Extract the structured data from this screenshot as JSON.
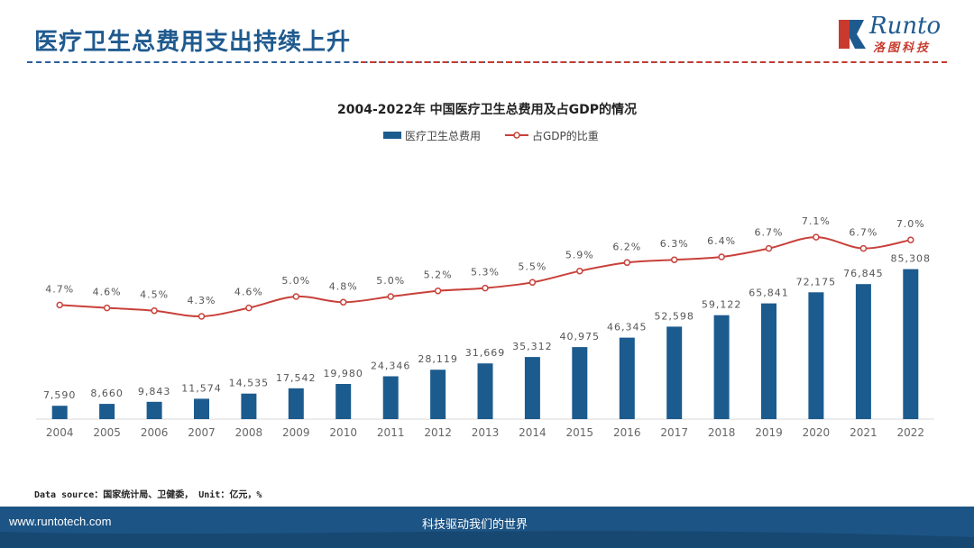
{
  "header": {
    "title": "医疗卫生总费用支出持续上升",
    "logo_word": "Runto",
    "logo_sub": "洛图科技"
  },
  "footer": {
    "url": "www.runtotech.com",
    "slogan": "科技驱动我们的世界"
  },
  "source_note": "Data source：国家统计局、卫健委， Unit：亿元，%",
  "colors": {
    "bar": "#1c5b8e",
    "line": "#c8413a",
    "title_blue": "#1f5a8f"
  },
  "chart_data": {
    "type": "bar",
    "title": "2004-2022年 中国医疗卫生总费用及占GDP的情况",
    "legend_position": "top-center",
    "categories": [
      "2004",
      "2005",
      "2006",
      "2007",
      "2008",
      "2009",
      "2010",
      "2011",
      "2012",
      "2013",
      "2014",
      "2015",
      "2016",
      "2017",
      "2018",
      "2019",
      "2020",
      "2021",
      "2022"
    ],
    "series": [
      {
        "name": "医疗卫生总费用",
        "kind": "bar",
        "values": [
          7590,
          8660,
          9843,
          11574,
          14535,
          17542,
          19980,
          24346,
          28119,
          31669,
          35312,
          40975,
          46345,
          52598,
          59122,
          65841,
          72175,
          76845,
          85308
        ],
        "labels": [
          "7,590",
          "8,660",
          "9,843",
          "11,574",
          "14,535",
          "17,542",
          "19,980",
          "24,346",
          "28,119",
          "31,669",
          "35,312",
          "40,975",
          "46,345",
          "52,598",
          "59,122",
          "65,841",
          "72,175",
          "76,845",
          "85,308"
        ]
      },
      {
        "name": "占GDP的比重",
        "kind": "line",
        "values": [
          4.7,
          4.6,
          4.5,
          4.3,
          4.6,
          5.0,
          4.8,
          5.0,
          5.2,
          5.3,
          5.5,
          5.9,
          6.2,
          6.3,
          6.4,
          6.7,
          7.1,
          6.7,
          7.0
        ],
        "labels": [
          "4.7%",
          "4.6%",
          "4.5%",
          "4.3%",
          "4.6%",
          "5.0%",
          "4.8%",
          "5.0%",
          "5.2%",
          "5.3%",
          "5.5%",
          "5.9%",
          "6.2%",
          "6.3%",
          "6.4%",
          "6.7%",
          "7.1%",
          "6.7%",
          "7.0%"
        ]
      }
    ],
    "grid": false
  }
}
